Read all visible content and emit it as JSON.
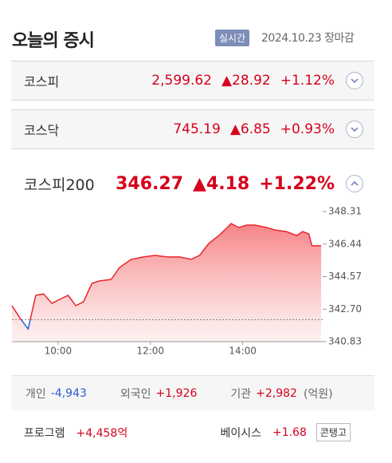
{
  "header": {
    "title": "오늘의 증시",
    "badge": "실시간",
    "date": "2024.10.23 장마감"
  },
  "indices": [
    {
      "name": "코스피",
      "value": "2,599.62",
      "change": "▲28.92",
      "rate": "+1.12%"
    },
    {
      "name": "코스닥",
      "value": "745.19",
      "change": "▲6.85",
      "rate": "+0.93%"
    },
    {
      "name": "코스피200",
      "value": "346.27",
      "change": "▲4.18",
      "rate": "+1.22%"
    }
  ],
  "chart_data": {
    "type": "line",
    "color": "#e8262b",
    "below_color": "#2a62d6",
    "baseline": 342.09,
    "x": [
      540,
      550,
      561,
      571,
      581,
      592,
      602,
      613,
      623,
      633,
      644,
      654,
      669,
      680,
      695,
      711,
      726,
      742,
      758,
      773,
      784,
      796,
      809,
      820,
      825,
      835,
      845,
      856,
      871,
      882,
      897,
      910,
      918,
      926,
      930,
      942
    ],
    "values": [
      342.9,
      342.21,
      341.56,
      343.49,
      343.58,
      343.03,
      343.26,
      343.49,
      342.9,
      343.12,
      344.18,
      344.32,
      344.41,
      345.1,
      345.56,
      345.7,
      345.79,
      345.7,
      345.7,
      345.56,
      345.79,
      346.48,
      346.93,
      347.39,
      347.62,
      347.39,
      347.53,
      347.53,
      347.39,
      347.25,
      347.16,
      346.93,
      347.16,
      347.03,
      346.34,
      346.34
    ],
    "xlim": [
      540,
      944
    ],
    "xticks": [
      {
        "value": 600,
        "label": "10:00"
      },
      {
        "value": 720,
        "label": "12:00"
      },
      {
        "value": 840,
        "label": "14:00"
      }
    ],
    "ylim": [
      340.83,
      348.31
    ],
    "yticks": [
      340.83,
      {
        "value": 342.7,
        "label": "342.70"
      },
      344.57,
      346.44,
      348.31
    ]
  },
  "investors": [
    {
      "label": "개인",
      "value": "-4,943"
    },
    {
      "label": "외국인",
      "value": "+1,926"
    },
    {
      "label": "기관",
      "value": "+2,982"
    }
  ],
  "unit": "(억원)",
  "program": {
    "label": "프로그램",
    "value": "+4,458억"
  },
  "basis": {
    "label": "베이시스",
    "value": "+1.68",
    "tag": "콘탱고"
  }
}
